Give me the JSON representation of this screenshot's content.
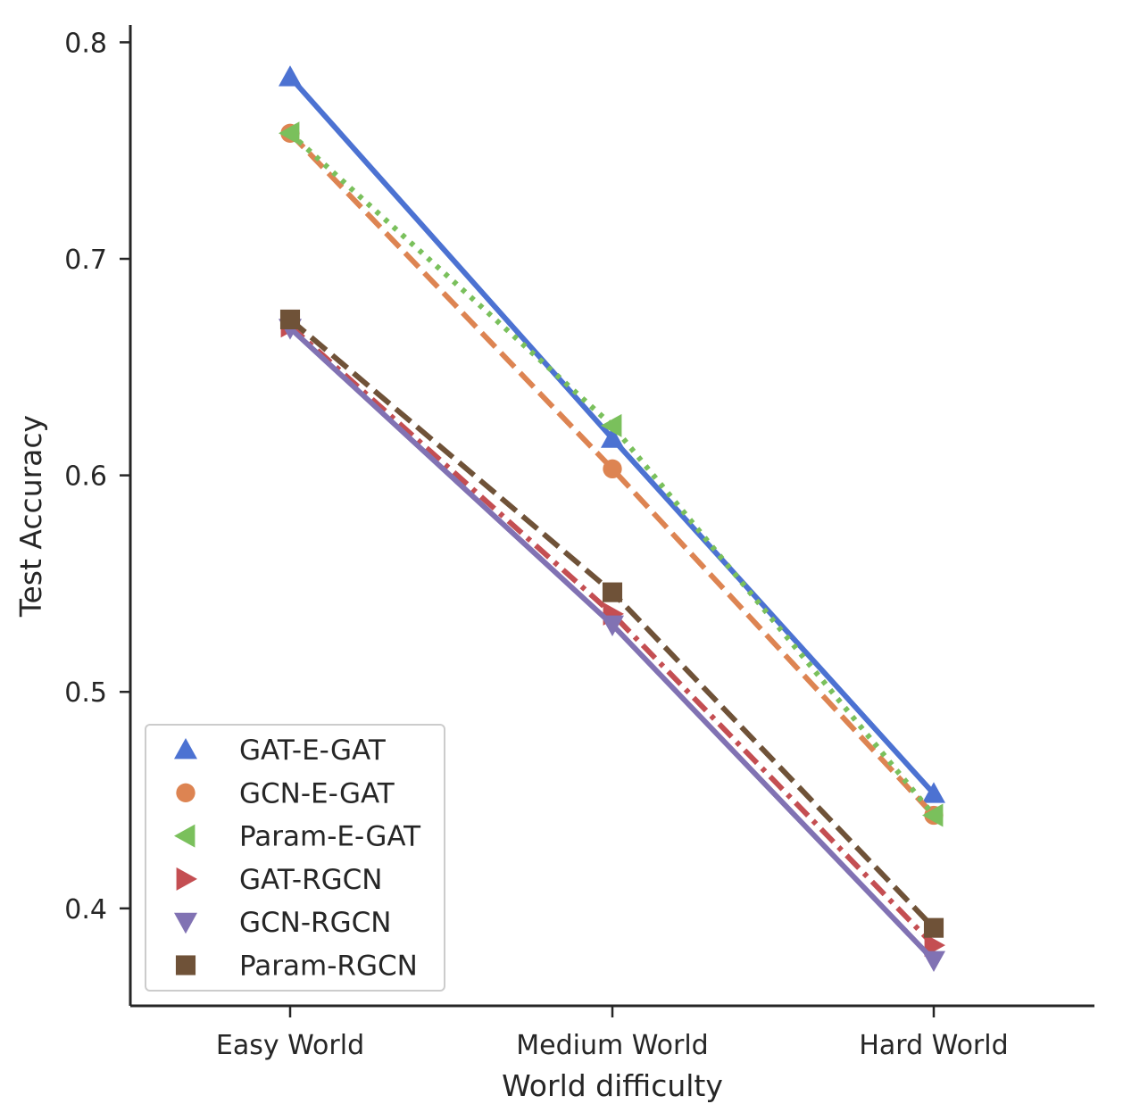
{
  "chart_data": {
    "type": "line",
    "title": "",
    "xlabel": "World difficulty",
    "ylabel": "Test Accuracy",
    "categories": [
      "Easy World",
      "Medium World",
      "Hard World"
    ],
    "yticks": [
      "0.4",
      "0.5",
      "0.6",
      "0.7",
      "0.8"
    ],
    "ylim": [
      0.355,
      0.808
    ],
    "grid": false,
    "legend_position": "lower-left",
    "series": [
      {
        "name": "GAT-E-GAT",
        "values": [
          0.784,
          0.617,
          0.453
        ],
        "color": "#4c72d2",
        "marker": "triangle-up",
        "line": "solid"
      },
      {
        "name": "GCN-E-GAT",
        "values": [
          0.758,
          0.603,
          0.443
        ],
        "color": "#dd8452",
        "marker": "circle",
        "line": "dashed"
      },
      {
        "name": "Param-E-GAT",
        "values": [
          0.758,
          0.623,
          0.443
        ],
        "color": "#7ac05c",
        "marker": "triangle-left",
        "line": "dotted"
      },
      {
        "name": "GAT-RGCN",
        "values": [
          0.669,
          0.536,
          0.383
        ],
        "color": "#c44e52",
        "marker": "triangle-right",
        "line": "dashdot"
      },
      {
        "name": "GCN-RGCN",
        "values": [
          0.668,
          0.531,
          0.376
        ],
        "color": "#8172b3",
        "marker": "triangle-down",
        "line": "solid"
      },
      {
        "name": "Param-RGCN",
        "values": [
          0.672,
          0.546,
          0.391
        ],
        "color": "#6f5238",
        "marker": "square",
        "line": "dashed"
      }
    ]
  }
}
